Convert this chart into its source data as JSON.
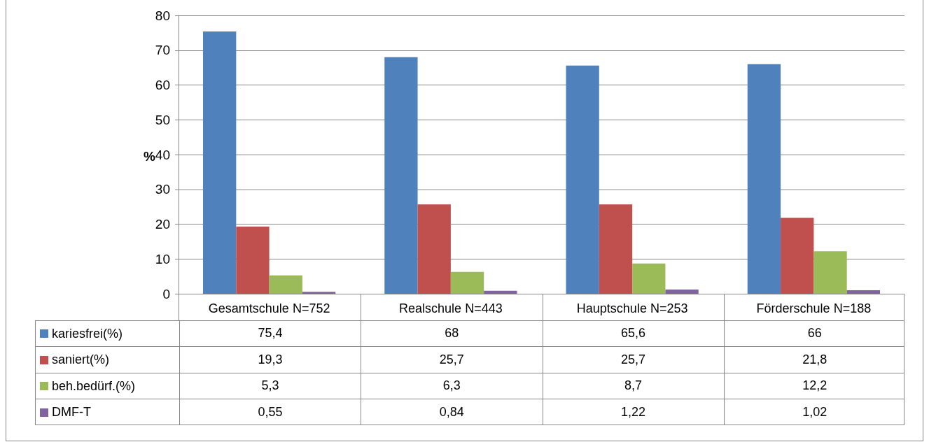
{
  "chart_data": {
    "type": "bar",
    "ylabel": "%",
    "categories": [
      "Gesamtschule N=752",
      "Realschule N=443",
      "Hauptschule N=253",
      "Förderschule N=188"
    ],
    "series": [
      {
        "name": "kariesfrei(%)",
        "color": "#4f81bd",
        "values": [
          75.4,
          68,
          65.6,
          66
        ],
        "value_labels": [
          "75,4",
          "68",
          "65,6",
          "66"
        ]
      },
      {
        "name": "saniert(%)",
        "color": "#c0504d",
        "values": [
          19.3,
          25.7,
          25.7,
          21.8
        ],
        "value_labels": [
          "19,3",
          "25,7",
          "25,7",
          "21,8"
        ]
      },
      {
        "name": "beh.bedürf.(%)",
        "color": "#9bbb59",
        "values": [
          5.3,
          6.3,
          8.7,
          12.2
        ],
        "value_labels": [
          "5,3",
          "6,3",
          "8,7",
          "12,2"
        ]
      },
      {
        "name": "DMF-T",
        "color": "#8064a2",
        "values": [
          0.55,
          0.84,
          1.22,
          1.02
        ],
        "value_labels": [
          "0,55",
          "0,84",
          "1,22",
          "1,02"
        ]
      }
    ],
    "ylim": [
      0,
      80
    ],
    "yticks": [
      0,
      10,
      20,
      30,
      40,
      50,
      60,
      70,
      80
    ],
    "grid": "y",
    "legend": "bottom left"
  }
}
